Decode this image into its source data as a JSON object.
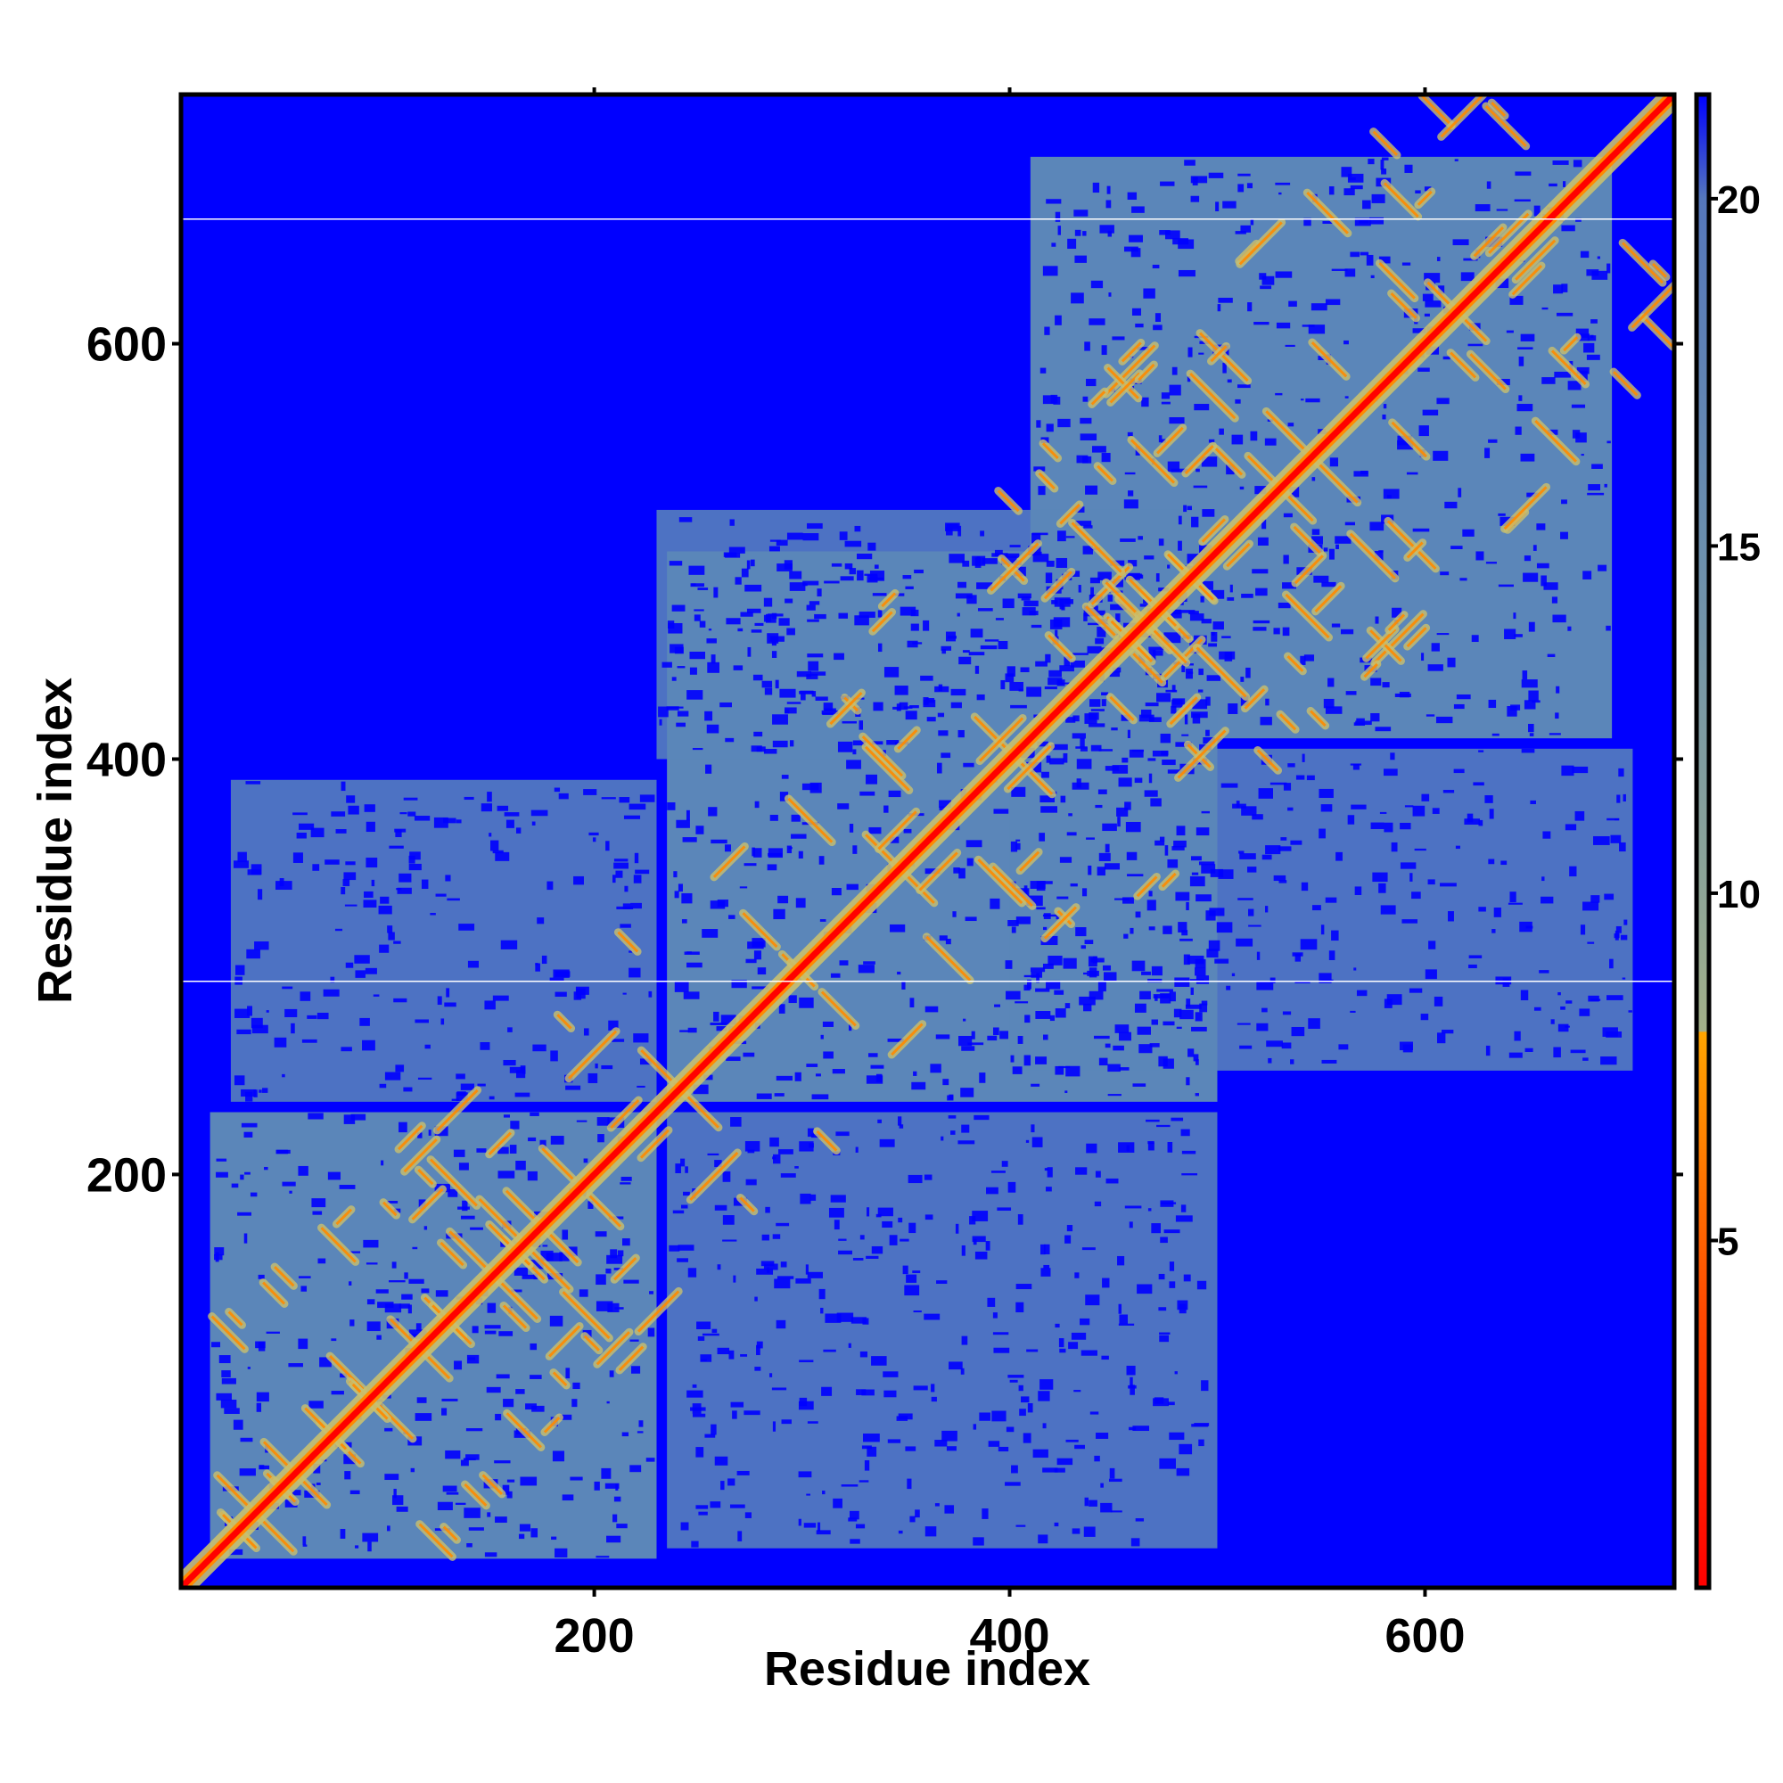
{
  "chart_data": {
    "type": "heatmap",
    "title": "",
    "xlabel": "Residue index",
    "ylabel": "Residue index",
    "xlim": [
      1,
      720
    ],
    "ylim": [
      1,
      720
    ],
    "x_ticks": [
      200,
      400,
      600
    ],
    "y_ticks": [
      200,
      400,
      600
    ],
    "x_tick_labels": [
      "200",
      "400",
      "600"
    ],
    "y_tick_labels": [
      "200",
      "400",
      "600"
    ],
    "colorbar": {
      "range": [
        0,
        21.5
      ],
      "ticks": [
        5,
        10,
        15,
        20
      ],
      "tick_labels": [
        "5",
        "10",
        "15",
        "20"
      ],
      "stops": [
        {
          "value": 0,
          "color": "#ff0000"
        },
        {
          "value": 4,
          "color": "#ff4a00"
        },
        {
          "value": 8,
          "color": "#ffa500"
        },
        {
          "value": 8.01,
          "color": "#a3b089"
        },
        {
          "value": 10,
          "color": "#8ea597"
        },
        {
          "value": 15,
          "color": "#6b8fae"
        },
        {
          "value": 20,
          "color": "#5577bb"
        },
        {
          "value": 21.5,
          "color": "#0000ff"
        }
      ]
    },
    "colors": {
      "background": "#0000ff",
      "contact_region": "#5b86b9",
      "near_contact": "#c8c070",
      "close_contact": "#ff8a00",
      "diagonal": "#ff0000",
      "gap_line": "#ffffff"
    },
    "domains": [
      {
        "range": [
          15,
          230
        ]
      },
      {
        "range": [
          235,
          500
        ]
      },
      {
        "range": [
          410,
          690
        ]
      }
    ],
    "off_diagonal_regions": [
      {
        "x": [
          25,
          230
        ],
        "y": [
          235,
          390
        ]
      },
      {
        "x": [
          235,
          500
        ],
        "y": [
          20,
          230
        ]
      },
      {
        "x": [
          230,
          500
        ],
        "y": [
          400,
          520
        ]
      },
      {
        "x": [
          400,
          700
        ],
        "y": [
          250,
          405
        ]
      }
    ],
    "gap_rows": [
      293,
      660
    ]
  }
}
